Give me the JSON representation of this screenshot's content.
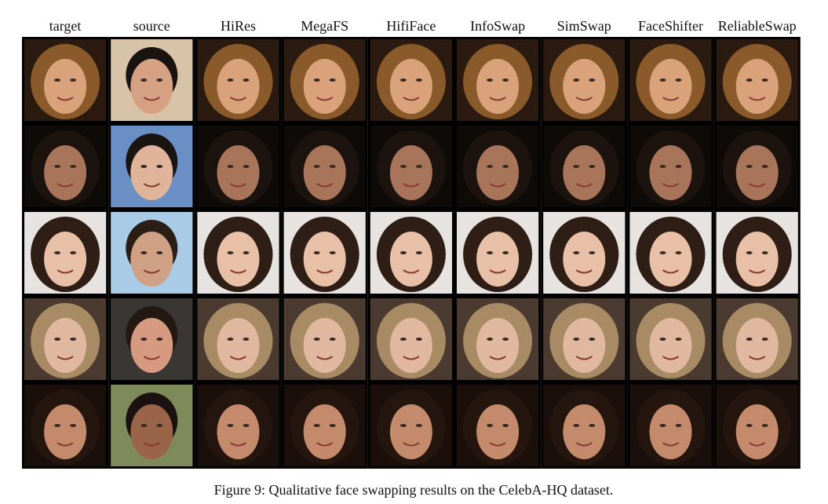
{
  "columns": [
    "target",
    "source",
    "HiRes",
    "MegaFS",
    "HifiFace",
    "InfoSwap",
    "SimSwap",
    "FaceShifter",
    "ReliableSwap"
  ],
  "caption": "Figure 9: Qualitative face swapping results on the CelebA-HQ dataset."
}
